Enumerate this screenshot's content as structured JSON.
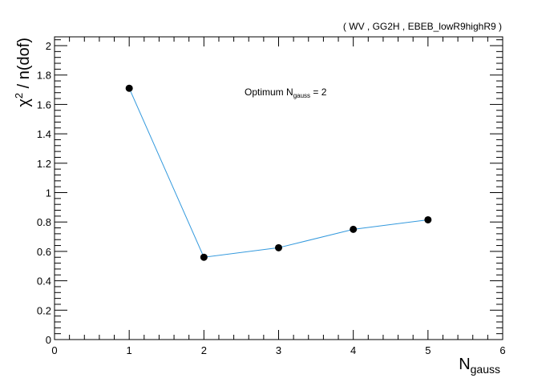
{
  "chart_data": {
    "type": "line",
    "title": "( WV , GG2H , EBEB_lowR9highR9 )",
    "ylabel": "χ² / n(dof)",
    "xlabel": {
      "main": "N",
      "sub": "gauss"
    },
    "annotation": {
      "prefix": "Optimum N",
      "sub": "gauss",
      "suffix": " = 2"
    },
    "xlim": [
      0,
      6
    ],
    "ylim": [
      0,
      2.06
    ],
    "x_ticks": [
      0,
      1,
      2,
      3,
      4,
      5,
      6
    ],
    "y_ticks": [
      0,
      0.2,
      0.4,
      0.6,
      0.8,
      1,
      1.2,
      1.4,
      1.6,
      1.8,
      2
    ],
    "x_tick_labels": [
      "0",
      "1",
      "2",
      "3",
      "4",
      "5",
      "6"
    ],
    "y_tick_labels": [
      "0",
      "0.2",
      "0.4",
      "0.6",
      "0.8",
      "1",
      "1.2",
      "1.4",
      "1.6",
      "1.8",
      "2"
    ],
    "grid": false,
    "series": [
      {
        "x": [
          1,
          2,
          3,
          4,
          5
        ],
        "values": [
          1.71,
          0.56,
          0.625,
          0.75,
          0.815
        ],
        "line_color": "#3399dd",
        "marker_color": "#000000"
      }
    ]
  }
}
